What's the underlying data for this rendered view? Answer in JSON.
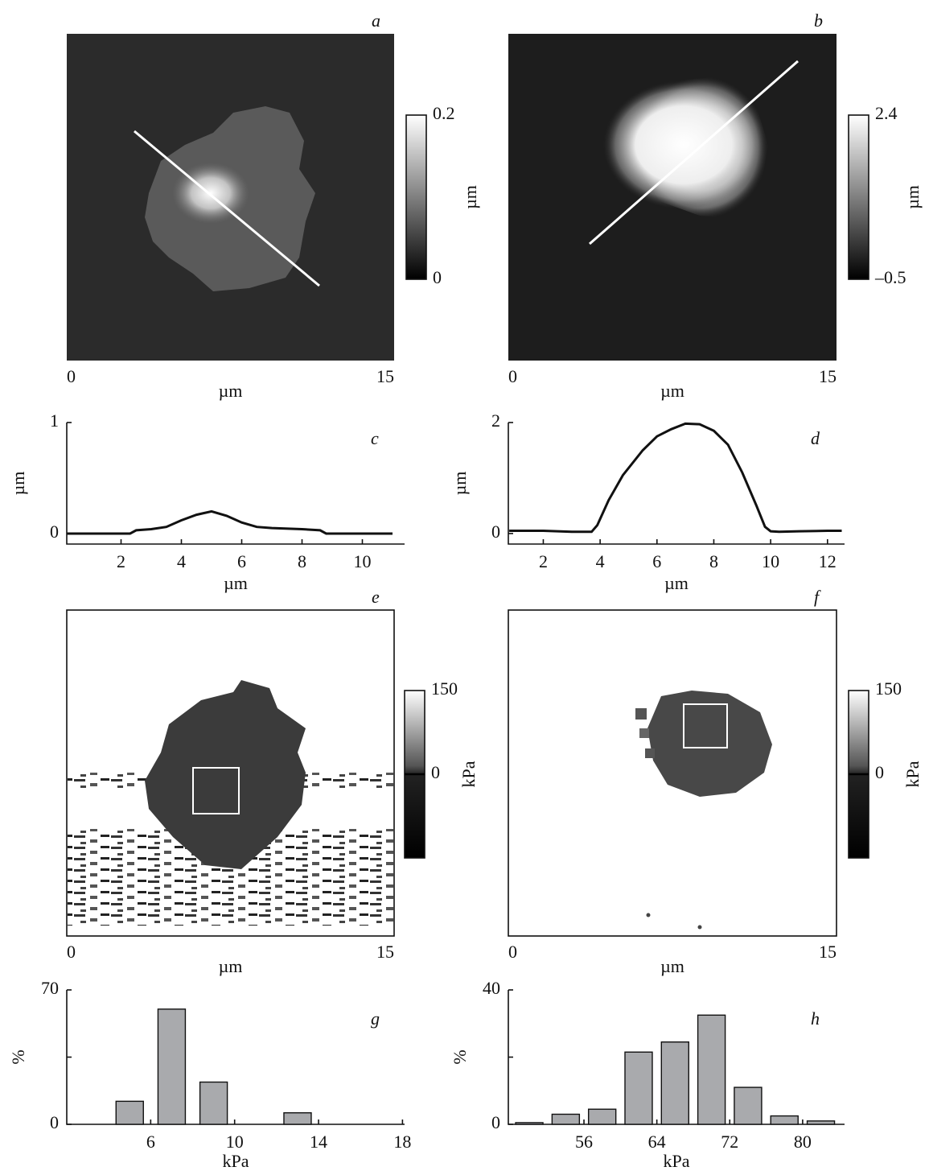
{
  "chart_data": [
    {
      "type": "image",
      "title": "a",
      "xlim": [
        0,
        15
      ],
      "xticks": [
        0,
        15
      ],
      "xlabel": "µm",
      "colorbar": {
        "lim": [
          0,
          0.2
        ],
        "ticks": [
          0,
          0.2
        ],
        "label": "µm"
      }
    },
    {
      "type": "image",
      "title": "b",
      "xlim": [
        0,
        15
      ],
      "xticks": [
        0,
        15
      ],
      "xlabel": "µm",
      "colorbar": {
        "lim": [
          -0.5,
          2.4
        ],
        "ticks": [
          {
            "value": -0.5,
            "label": "–0.5"
          },
          2.4
        ],
        "label": "µm"
      }
    },
    {
      "type": "line",
      "title": "c",
      "xlabel": "µm",
      "ylabel": "µm",
      "color": "#111111",
      "xlim": [
        0.2,
        11.4
      ],
      "xticks": [
        2,
        4,
        6,
        8,
        10
      ],
      "ylim": [
        -0.094,
        1
      ],
      "yticks": [
        0,
        1
      ],
      "x": [
        0.2,
        1,
        2,
        2.3,
        2.5,
        3,
        3.5,
        4,
        4.5,
        5,
        5.5,
        6,
        6.5,
        7,
        8,
        8.6,
        8.8,
        9,
        10,
        11
      ],
      "values": [
        0,
        0,
        0,
        0,
        0.03,
        0.04,
        0.06,
        0.12,
        0.17,
        0.2,
        0.16,
        0.1,
        0.06,
        0.05,
        0.04,
        0.03,
        0,
        0,
        0,
        0
      ]
    },
    {
      "type": "line",
      "title": "d",
      "xlabel": "µm",
      "ylabel": "µm",
      "color": "#111111",
      "xlim": [
        0.77,
        12.6
      ],
      "xticks": [
        2,
        4,
        6,
        8,
        10,
        12
      ],
      "ylim": [
        -0.19,
        2
      ],
      "yticks": [
        0,
        2
      ],
      "x": [
        0.8,
        2,
        3,
        3.7,
        3.9,
        4.3,
        4.8,
        5.5,
        6,
        6.5,
        7,
        7.5,
        8,
        8.5,
        9,
        9.5,
        9.8,
        10,
        10.3,
        11,
        12,
        12.5
      ],
      "values": [
        0.05,
        0.05,
        0.03,
        0.03,
        0.15,
        0.6,
        1.05,
        1.5,
        1.75,
        1.88,
        1.98,
        1.97,
        1.85,
        1.6,
        1.1,
        0.5,
        0.12,
        0.04,
        0.03,
        0.04,
        0.05,
        0.05
      ]
    },
    {
      "type": "image",
      "title": "e",
      "xlim": [
        0,
        15
      ],
      "xticks": [
        0,
        15
      ],
      "xlabel": "µm",
      "colorbar": {
        "lim": [
          -150,
          150
        ],
        "ticks": [
          0,
          150
        ],
        "label": "kPa"
      }
    },
    {
      "type": "image",
      "title": "f",
      "xlim": [
        0,
        15
      ],
      "xticks": [
        0,
        15
      ],
      "xlabel": "µm",
      "colorbar": {
        "lim": [
          -150,
          150
        ],
        "ticks": [
          0,
          150
        ],
        "label": "kPa"
      }
    },
    {
      "type": "bar",
      "title": "g",
      "xlabel": "kPa",
      "ylabel": "%",
      "color": "#a9aaad",
      "xlim": [
        2,
        18.1
      ],
      "xticks": [
        6,
        10,
        14,
        18
      ],
      "ylim": [
        0,
        70
      ],
      "yticks": [
        0,
        {
          "value": 35,
          "label": null
        },
        70
      ],
      "x": [
        5,
        7,
        9,
        13
      ],
      "values": [
        12,
        60,
        22,
        6
      ]
    },
    {
      "type": "bar",
      "title": "h",
      "xlabel": "kPa",
      "ylabel": "%",
      "color": "#a9aaad",
      "xlim": [
        47.7,
        84.6
      ],
      "xticks": [
        56,
        64,
        72,
        80
      ],
      "ylim": [
        0,
        40
      ],
      "yticks": [
        0,
        {
          "value": 20,
          "label": null
        },
        40
      ],
      "x": [
        50,
        54,
        58,
        62,
        66,
        70,
        74,
        78,
        82
      ],
      "values": [
        0.5,
        3,
        4.5,
        21.5,
        24.5,
        32.5,
        11,
        2.5,
        1
      ]
    }
  ]
}
